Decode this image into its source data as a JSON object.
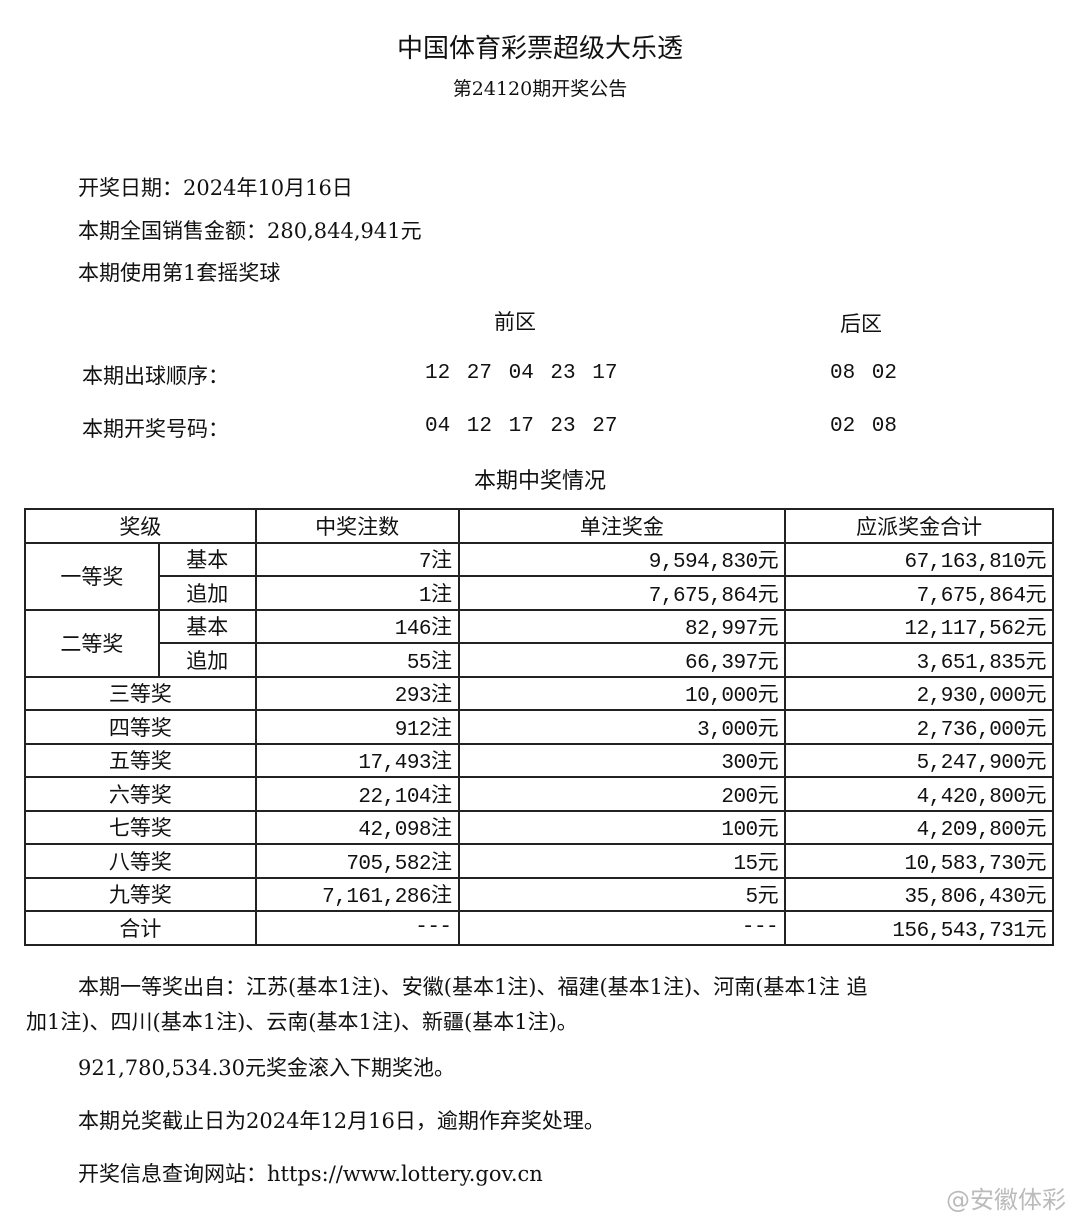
{
  "header": {
    "title": "中国体育彩票超级大乐透",
    "subtitle": "第24120期开奖公告"
  },
  "info": {
    "draw_date": "开奖日期：2024年10月16日",
    "sales": "本期全国销售金额：280,844,941元",
    "ball_set": "本期使用第1套摇奖球"
  },
  "numbers": {
    "front_label": "前区",
    "back_label": "后区",
    "order_label": "本期出球顺序：",
    "order_front": "12 27 04 23 17",
    "order_back": "08 02",
    "win_label": "本期开奖号码：",
    "win_front": "04 12 17 23 27",
    "win_back": "02 08"
  },
  "prize_section_title": "本期中奖情况",
  "table": {
    "headers": [
      "奖级",
      "中奖注数",
      "单注奖金",
      "应派奖金合计"
    ],
    "split_rows": [
      {
        "level": "一等奖",
        "sub": [
          {
            "type": "基本",
            "count": "7注",
            "prize": "9,594,830元",
            "total": "67,163,810元"
          },
          {
            "type": "追加",
            "count": "1注",
            "prize": "7,675,864元",
            "total": "7,675,864元"
          }
        ]
      },
      {
        "level": "二等奖",
        "sub": [
          {
            "type": "基本",
            "count": "146注",
            "prize": "82,997元",
            "total": "12,117,562元"
          },
          {
            "type": "追加",
            "count": "55注",
            "prize": "66,397元",
            "total": "3,651,835元"
          }
        ]
      }
    ],
    "rows": [
      {
        "level": "三等奖",
        "count": "293注",
        "prize": "10,000元",
        "total": "2,930,000元"
      },
      {
        "level": "四等奖",
        "count": "912注",
        "prize": "3,000元",
        "total": "2,736,000元"
      },
      {
        "level": "五等奖",
        "count": "17,493注",
        "prize": "300元",
        "total": "5,247,900元"
      },
      {
        "level": "六等奖",
        "count": "22,104注",
        "prize": "200元",
        "total": "4,420,800元"
      },
      {
        "level": "七等奖",
        "count": "42,098注",
        "prize": "100元",
        "total": "4,209,800元"
      },
      {
        "level": "八等奖",
        "count": "705,582注",
        "prize": "15元",
        "total": "10,583,730元"
      },
      {
        "level": "九等奖",
        "count": "7,161,286注",
        "prize": "5元",
        "total": "35,806,430元"
      },
      {
        "level": "合计",
        "count": "---",
        "prize": "---",
        "total": "156,543,731元"
      }
    ]
  },
  "footer": {
    "first_prize_line1": "本期一等奖出自：江苏(基本1注)、安徽(基本1注)、福建(基本1注)、河南(基本1注 追",
    "first_prize_line2": "加1注)、四川(基本1注)、云南(基本1注)、新疆(基本1注)。",
    "rollover": "921,780,534.30元奖金滚入下期奖池。",
    "deadline": "本期兑奖截止日为2024年12月16日，逾期作弃奖处理。",
    "website": "开奖信息查询网站：https://www.lottery.gov.cn"
  },
  "watermark": "@安徽体彩"
}
